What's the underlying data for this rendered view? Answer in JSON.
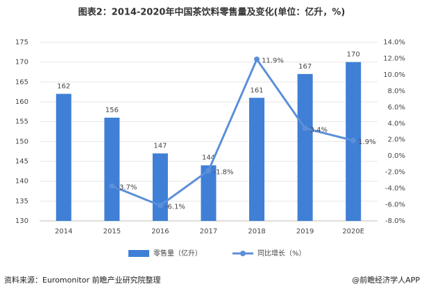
{
  "chart_data": {
    "type": "bar",
    "title": "图表2：2014-2020年中国茶饮料零售量及变化(单位：亿升，%)",
    "categories": [
      "2014",
      "2015",
      "2016",
      "2017",
      "2018",
      "2019",
      "2020E"
    ],
    "series": [
      {
        "name": "零售量（亿升）",
        "type": "bar",
        "color": "#3f7fd6",
        "values": [
          162,
          156,
          147,
          144,
          161,
          167,
          170
        ]
      },
      {
        "name": "同比增长（%）",
        "type": "line",
        "axis": "y2",
        "color": "#5b8fd9",
        "values": [
          null,
          -3.7,
          -6.1,
          -1.8,
          11.9,
          3.4,
          1.9
        ],
        "value_labels": [
          null,
          "-3.7%",
          "-6.1%",
          "-1.8%",
          "11.9%",
          "3.4%",
          "1.9%"
        ]
      }
    ],
    "ylim": [
      130,
      175
    ],
    "yticks": [
      130,
      135,
      140,
      145,
      150,
      155,
      160,
      165,
      170,
      175
    ],
    "y2lim": [
      -8,
      14
    ],
    "y2ticks": [
      {
        "value": -8,
        "label": "-8.0%"
      },
      {
        "value": -6,
        "label": "-6.0%"
      },
      {
        "value": -4,
        "label": "-4.0%"
      },
      {
        "value": -2,
        "label": "-2.0%"
      },
      {
        "value": 0,
        "label": "0.0%"
      },
      {
        "value": 2,
        "label": "2.0%"
      },
      {
        "value": 4,
        "label": "4.0%"
      },
      {
        "value": 6,
        "label": "6.0%"
      },
      {
        "value": 8,
        "label": "8.0%"
      },
      {
        "value": 10,
        "label": "10.0%"
      },
      {
        "value": 12,
        "label": "12.0%"
      },
      {
        "value": 14,
        "label": "14.0%"
      }
    ],
    "grid": true,
    "legend": "bottom",
    "source": "资料来源：Euromonitor 前瞻产业研究院整理",
    "credit": "@前瞻经济学人APP"
  }
}
